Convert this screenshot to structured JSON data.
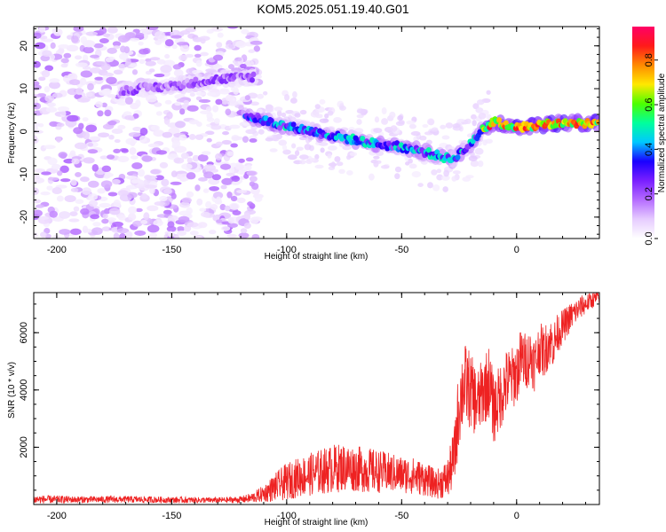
{
  "title": "KOM5.2025.051.19.40.G01",
  "chart_data": [
    {
      "type": "heatmap",
      "xlabel": "Height of straight line (km)",
      "ylabel": "Frequency (Hz)",
      "xlim": [
        -210,
        36
      ],
      "ylim": [
        -25,
        24.5
      ],
      "xticks": [
        -200,
        -150,
        -100,
        -50,
        0
      ],
      "xtick_labels": [
        "-200",
        "-150",
        "-100",
        "-50",
        "0"
      ],
      "yticks": [
        20,
        10,
        0,
        -10,
        -20
      ],
      "ytick_labels": [
        "20",
        "10",
        "0",
        "-10",
        "-20"
      ],
      "colorbar": {
        "label": "Normalized spectral amplitude",
        "range": [
          0,
          0.95
        ],
        "ticks": [
          0.0,
          0.2,
          0.4,
          0.6,
          0.8
        ],
        "tick_labels": [
          "0.0",
          "0.2",
          "0.4",
          "0.6",
          "0.8"
        ],
        "colormap": [
          "#ffffff",
          "#e6ccff",
          "#b56cff",
          "#7a1fff",
          "#1a00ff",
          "#00c8ff",
          "#00ff9c",
          "#4cff00",
          "#ffe800",
          "#ff8a00",
          "#ff1a1a",
          "#ff0066"
        ]
      },
      "ridges": [
        {
          "x": [
            -172,
            -160,
            -150,
            -140,
            -130,
            -120,
            -114
          ],
          "y": [
            9.5,
            10.2,
            10.6,
            11.4,
            12.2,
            12.6,
            12.8
          ],
          "amplitude": 0.22
        },
        {
          "x": [
            -118,
            -110,
            -100,
            -90,
            -80,
            -70,
            -60,
            -50,
            -40,
            -32,
            -28,
            -20,
            -15,
            -10,
            0,
            10,
            20,
            36
          ],
          "y": [
            3.8,
            2.6,
            1.2,
            0.2,
            -1.0,
            -2.0,
            -3.0,
            -3.6,
            -4.8,
            -6.0,
            -6.5,
            -3.0,
            0.5,
            2.2,
            1.0,
            1.5,
            2.0,
            2.0
          ],
          "amplitude": 0.45
        }
      ]
    },
    {
      "type": "line",
      "xlabel": "Height of straight line (km)",
      "ylabel": "SNR (10 * v/v)",
      "xlim": [
        -210,
        36
      ],
      "ylim": [
        0,
        7400
      ],
      "xticks": [
        -200,
        -150,
        -100,
        -50,
        0
      ],
      "xtick_labels": [
        "-200",
        "-150",
        "-100",
        "-50",
        "0"
      ],
      "yticks": [
        2000,
        4000,
        6000
      ],
      "ytick_labels": [
        "2000",
        "4000",
        "6000"
      ],
      "series": [
        {
          "color": "#ee2222",
          "x": [
            -210,
            -190,
            -170,
            -150,
            -130,
            -120,
            -115,
            -110,
            -105,
            -100,
            -95,
            -90,
            -85,
            -80,
            -75,
            -70,
            -65,
            -60,
            -55,
            -50,
            -45,
            -40,
            -35,
            -30,
            -27,
            -25,
            -23,
            -21,
            -19,
            -17,
            -15,
            -12,
            -10,
            -8,
            -6,
            -4,
            -2,
            0,
            2,
            4,
            6,
            8,
            10,
            12,
            14,
            16,
            18,
            20,
            24,
            28,
            32,
            36
          ],
          "y": [
            180,
            170,
            180,
            160,
            150,
            170,
            230,
            380,
            600,
            800,
            950,
            1050,
            1150,
            1250,
            1300,
            1250,
            1200,
            1150,
            1100,
            1050,
            1000,
            900,
            700,
            900,
            1700,
            3500,
            4200,
            4100,
            3800,
            3500,
            3900,
            4300,
            3300,
            3600,
            4000,
            4300,
            4400,
            4600,
            5100,
            5000,
            5200,
            4900,
            5500,
            5300,
            5700,
            5600,
            6000,
            6200,
            6600,
            6900,
            7100,
            7250
          ],
          "noise_amplitude": [
            150,
            120,
            120,
            110,
            100,
            120,
            180,
            300,
            500,
            650,
            700,
            750,
            800,
            850,
            850,
            800,
            800,
            750,
            700,
            650,
            650,
            600,
            500,
            700,
            1100,
            1500,
            1500,
            1400,
            1300,
            1200,
            1200,
            1300,
            1200,
            1200,
            1200,
            1200,
            1100,
            1100,
            1100,
            1000,
            1000,
            1000,
            900,
            900,
            900,
            800,
            700,
            600,
            500,
            400,
            300,
            250
          ],
          "samples_per_km": 8
        }
      ]
    }
  ]
}
